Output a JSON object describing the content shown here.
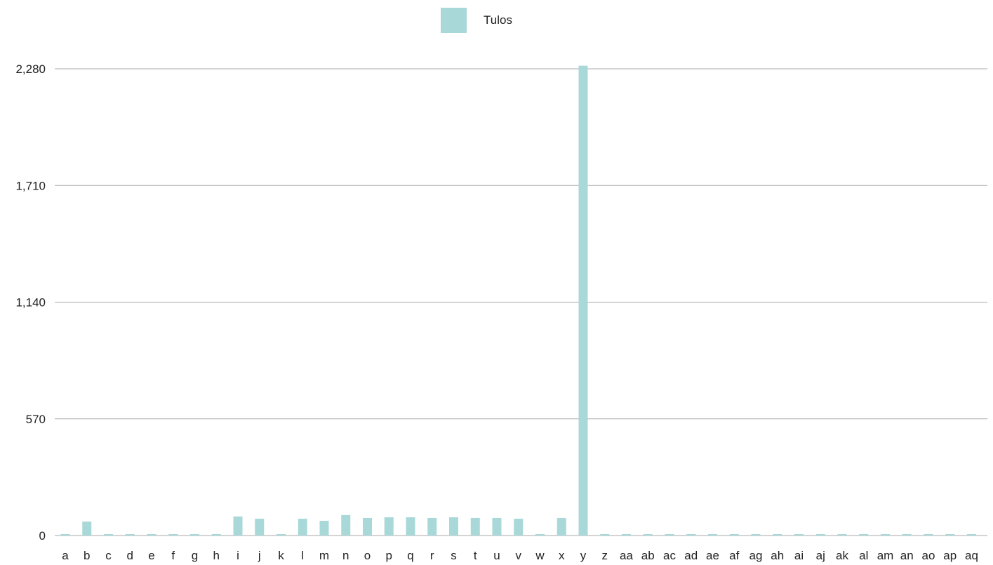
{
  "chart_data": {
    "type": "bar",
    "categories": [
      "a",
      "b",
      "c",
      "d",
      "e",
      "f",
      "g",
      "h",
      "i",
      "j",
      "k",
      "l",
      "m",
      "n",
      "o",
      "p",
      "q",
      "r",
      "s",
      "t",
      "u",
      "v",
      "w",
      "x",
      "y",
      "z",
      "aa",
      "ab",
      "ac",
      "ad",
      "ae",
      "af",
      "ag",
      "ah",
      "ai",
      "aj",
      "ak",
      "al",
      "am",
      "an",
      "ao",
      "ap",
      "aq"
    ],
    "series": [
      {
        "name": "Tulos",
        "color": "#a8d8d8",
        "values": [
          7,
          68,
          7,
          7,
          7,
          7,
          7,
          7,
          93,
          82,
          7,
          82,
          72,
          100,
          86,
          89,
          89,
          86,
          89,
          86,
          86,
          82,
          7,
          86,
          2295,
          7,
          7,
          7,
          7,
          7,
          7,
          7,
          7,
          7,
          7,
          7,
          7,
          7,
          7,
          7,
          7,
          7,
          7
        ]
      }
    ],
    "yticks": [
      0,
      570,
      1140,
      1710,
      2280
    ],
    "ytick_labels": [
      "0",
      "570",
      "1,140",
      "1,710",
      "2,280"
    ],
    "ylim": [
      0,
      2280
    ],
    "grid": true,
    "legend_position": "top-center",
    "gridline_color": "#aaaaaa"
  }
}
